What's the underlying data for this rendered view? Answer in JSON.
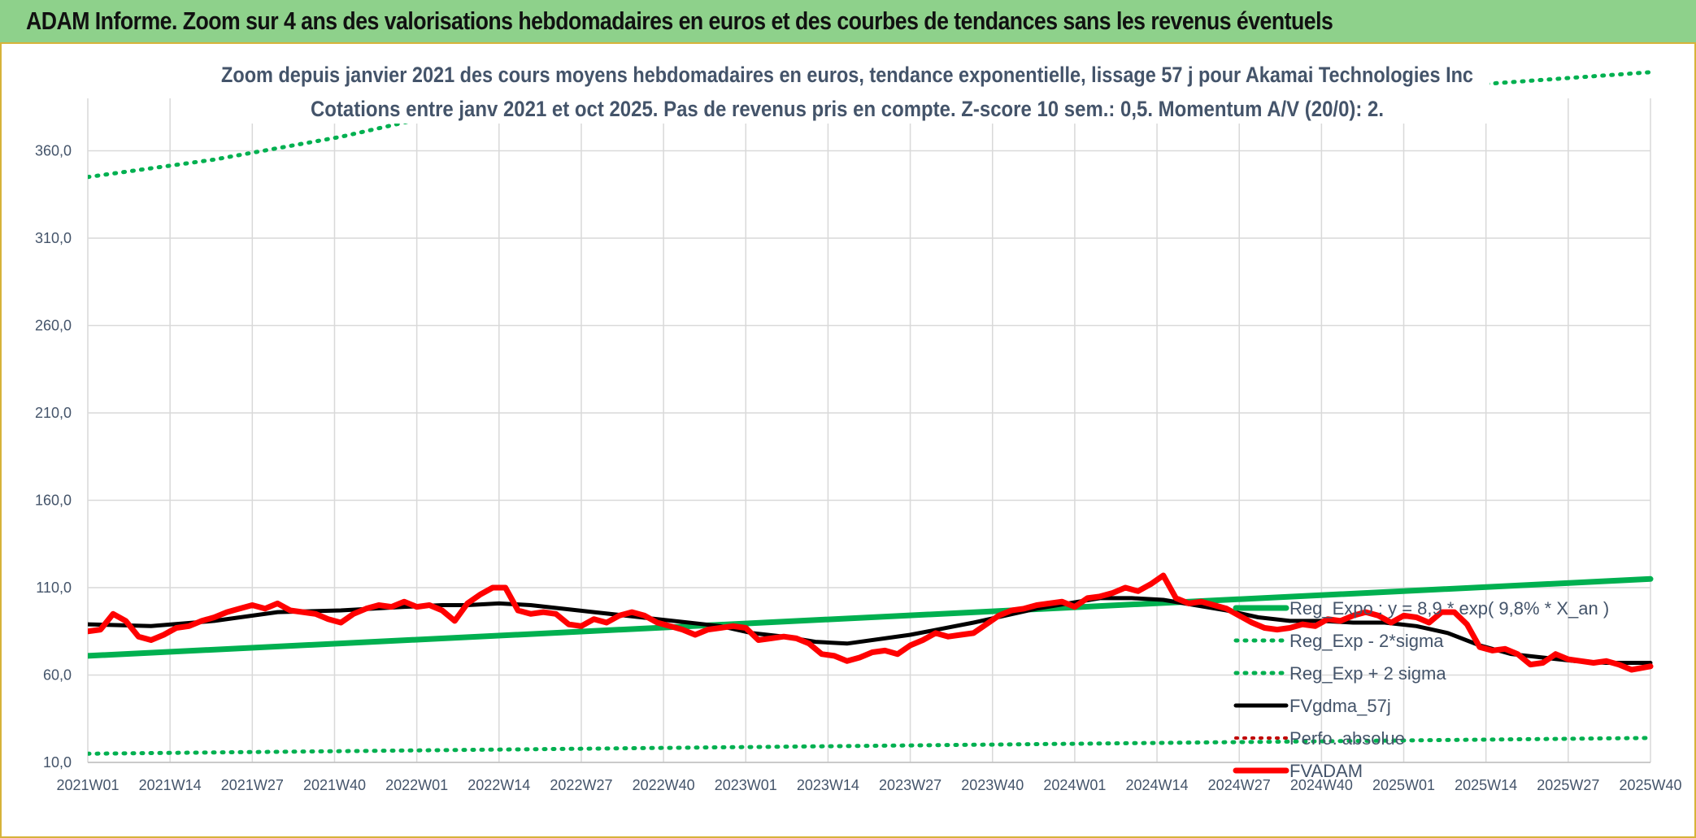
{
  "header": {
    "title": "ADAM Informe. Zoom sur 4 ans des valorisations hebdomadaires en euros et des courbes de tendances sans les revenus éventuels"
  },
  "colors": {
    "header_bg": "#8ed18b",
    "regression": "#00b050",
    "smoothing": "#000000",
    "price": "#ff0000",
    "perf": "#c00000",
    "text": "#44546a",
    "grid": "#d9d9d9"
  },
  "chart_data": {
    "type": "line",
    "title": "Zoom depuis janvier 2021 des cours moyens hebdomadaires en euros, tendance exponentielle, lissage 57 j pour Akamai Technologies Inc",
    "subtitle": "Cotations entre janv 2021 et oct 2025. Pas de revenus pris en compte. Z-score 10 sem.: 0,5. Momentum A/V (20/0): 2.",
    "ylim": [
      10,
      390
    ],
    "yticks": [
      "10,0",
      "60,0",
      "110,0",
      "160,0",
      "210,0",
      "260,0",
      "310,0",
      "360,0"
    ],
    "ytick_values": [
      10,
      60,
      110,
      160,
      210,
      260,
      310,
      360
    ],
    "x_range": [
      0,
      247
    ],
    "xtick_labels": [
      "2021W01",
      "2021W14",
      "2021W27",
      "2021W40",
      "2022W01",
      "2022W14",
      "2022W27",
      "2022W40",
      "2023W01",
      "2023W14",
      "2023W27",
      "2023W40",
      "2024W01",
      "2024W14",
      "2024W27",
      "2024W40",
      "2025W01",
      "2025W14",
      "2025W27",
      "2025W40"
    ],
    "grid": true,
    "legend_position": "right",
    "series": [
      {
        "name": "Reg_Expo : y = 8,9 * exp( 9,8% *  X_an )",
        "style": "solid",
        "x": [
          0,
          247
        ],
        "y": [
          71,
          115
        ]
      },
      {
        "name": "Reg_Exp - 2*sigma",
        "style": "dotted",
        "x": [
          0,
          247
        ],
        "y": [
          15,
          24
        ]
      },
      {
        "name": "Reg_Exp + 2 sigma",
        "style": "dotted",
        "x": [
          0,
          20,
          40,
          51,
          220,
          247
        ],
        "y": [
          345,
          355,
          368,
          377,
          398,
          405
        ]
      },
      {
        "name": "FVgdma_57j",
        "style": "solid",
        "x": [
          0,
          10,
          20,
          30,
          40,
          50,
          56,
          60,
          65,
          70,
          80,
          90,
          100,
          105,
          110,
          115,
          120,
          130,
          140,
          150,
          155,
          160,
          165,
          170,
          175,
          180,
          185,
          190,
          195,
          200,
          205,
          210,
          215,
          220,
          225,
          230,
          235,
          240,
          247
        ],
        "y": [
          89,
          88,
          91,
          96,
          97,
          99,
          100,
          100,
          101,
          100,
          96,
          92,
          88,
          84,
          82,
          79,
          78,
          83,
          90,
          98,
          101,
          104,
          104,
          103,
          100,
          97,
          93,
          91,
          91,
          90,
          90,
          88,
          84,
          77,
          72,
          70,
          68,
          67,
          67
        ]
      },
      {
        "name": "Perfo. absolue",
        "style": "dotted",
        "x": [],
        "y": []
      },
      {
        "name": "FVADAM",
        "style": "solid",
        "x": [
          0,
          2,
          4,
          6,
          8,
          10,
          12,
          14,
          16,
          18,
          20,
          22,
          24,
          26,
          28,
          30,
          32,
          34,
          36,
          38,
          40,
          42,
          44,
          46,
          48,
          50,
          52,
          54,
          56,
          58,
          60,
          62,
          64,
          66,
          68,
          70,
          72,
          74,
          76,
          78,
          80,
          82,
          84,
          86,
          88,
          90,
          92,
          94,
          96,
          98,
          100,
          102,
          104,
          106,
          108,
          110,
          112,
          114,
          116,
          118,
          120,
          122,
          124,
          126,
          128,
          130,
          132,
          134,
          136,
          138,
          140,
          142,
          144,
          146,
          148,
          150,
          152,
          154,
          156,
          158,
          160,
          162,
          164,
          166,
          168,
          170,
          172,
          174,
          176,
          178,
          180,
          182,
          184,
          186,
          188,
          190,
          192,
          194,
          196,
          198,
          200,
          202,
          204,
          206,
          208,
          210,
          212,
          214,
          216,
          218,
          220,
          222,
          224,
          226,
          228,
          230,
          232,
          234,
          236,
          238,
          240,
          242,
          244,
          247
        ],
        "y": [
          85,
          86,
          95,
          91,
          82,
          80,
          83,
          87,
          88,
          91,
          93,
          96,
          98,
          100,
          98,
          101,
          97,
          96,
          95,
          92,
          90,
          95,
          98,
          100,
          99,
          102,
          99,
          100,
          97,
          91,
          101,
          106,
          110,
          110,
          97,
          95,
          96,
          95,
          89,
          88,
          92,
          90,
          94,
          96,
          94,
          90,
          88,
          86,
          83,
          86,
          87,
          88,
          87,
          80,
          81,
          82,
          81,
          78,
          72,
          71,
          68,
          70,
          73,
          74,
          72,
          77,
          80,
          84,
          82,
          83,
          84,
          89,
          94,
          97,
          98,
          100,
          101,
          102,
          99,
          104,
          105,
          107,
          110,
          108,
          112,
          117,
          104,
          101,
          102,
          100,
          98,
          94,
          90,
          87,
          86,
          87,
          89,
          88,
          92,
          91,
          94,
          96,
          94,
          90,
          94,
          93,
          90,
          96,
          96,
          89,
          76,
          74,
          75,
          72,
          66,
          67,
          72,
          69,
          68,
          67,
          68,
          66,
          63,
          65
        ]
      }
    ]
  }
}
